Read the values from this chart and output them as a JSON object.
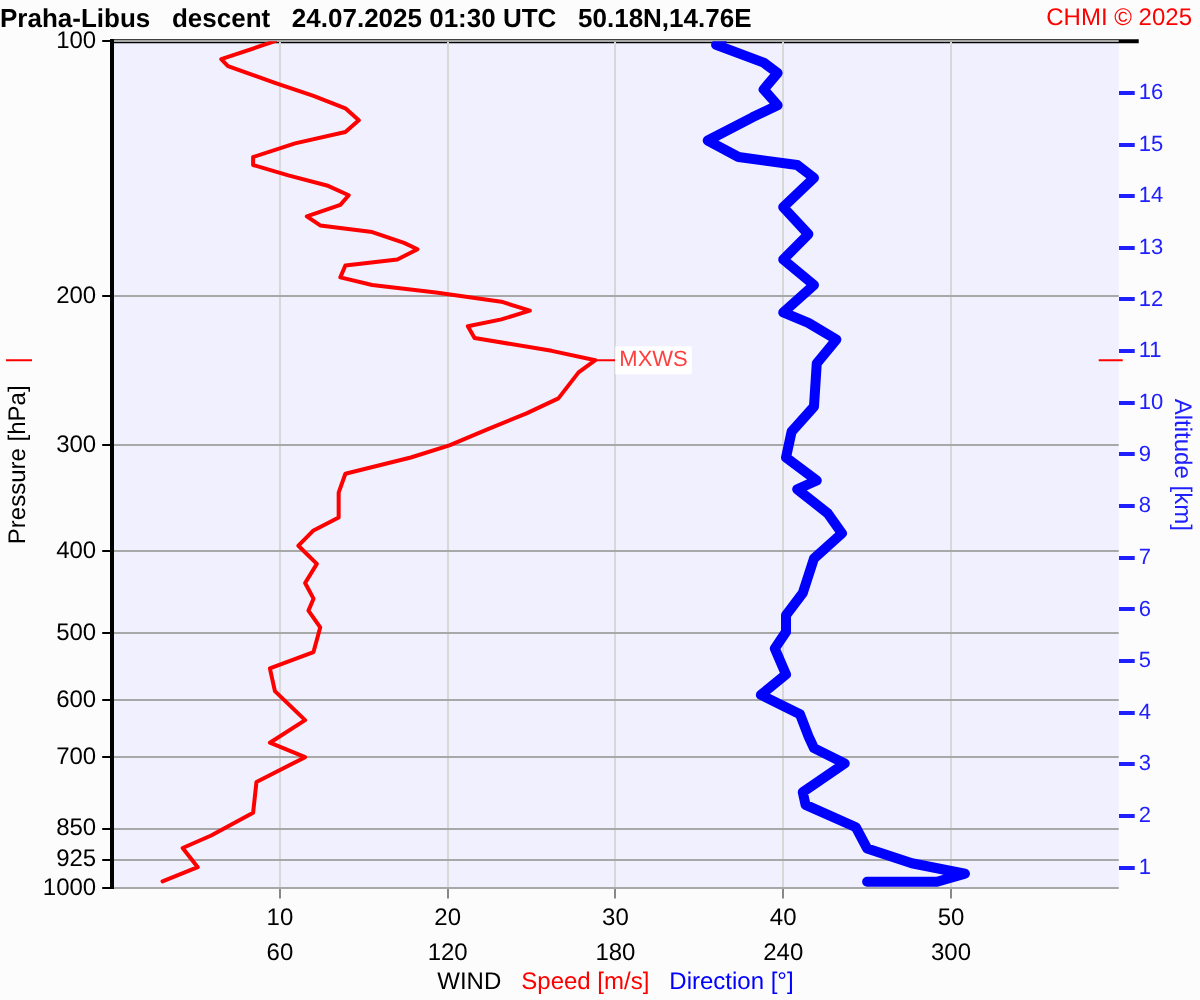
{
  "chart_data": {
    "type": "line",
    "title": "Praha-Libus   descent   24.07.2025 01:30 UTC   50.18N,14.76E",
    "xlabel": "WIND",
    "ylabel": "Pressure [hPa]",
    "y2label": "Altitude [km]",
    "legend": "bottom",
    "grid": true,
    "log": "y",
    "marker": "none",
    "line_style": "solid",
    "xlim": [
      0,
      60
    ],
    "xticks": [
      10,
      20,
      30,
      40,
      50
    ],
    "x2lim": [
      0,
      360
    ],
    "x2ticks": [
      60,
      120,
      180,
      240,
      300
    ],
    "ylim": [
      1000,
      100
    ],
    "yticks": [
      100,
      200,
      300,
      400,
      500,
      600,
      700,
      850,
      925,
      1000
    ],
    "series": [
      {
        "name": "Speed [m/s]",
        "color": "#ff0000",
        "x": [
          9.7,
          6.5,
          6.9,
          9.7,
          12.0,
          13.9,
          14.7,
          13.9,
          10.9,
          8.4,
          8.4,
          10.5,
          12.8,
          14.1,
          13.6,
          11.6,
          12.4,
          15.5,
          17.4,
          18.2,
          17.0,
          13.9,
          13.6,
          15.5,
          19.3,
          23.2,
          24.9,
          23.2,
          21.2,
          21.6,
          26.2,
          28.8,
          27.8,
          26.6,
          24.7,
          22.4,
          20.1,
          17.8,
          13.9,
          13.5,
          13.5,
          12.0,
          11.1,
          12.2,
          11.5,
          12.0,
          11.7,
          12.4,
          12.0,
          9.4,
          9.7,
          11.5,
          9.4,
          11.5,
          8.6,
          8.4,
          5.9,
          4.2,
          5.1,
          3.0
        ],
        "values": [
          100,
          105,
          107,
          112,
          116,
          120,
          124,
          128,
          132,
          137,
          140,
          144,
          148,
          152,
          156,
          161,
          165,
          168,
          173,
          176,
          181,
          184,
          190,
          194,
          198,
          203,
          208,
          213,
          217,
          224,
          232,
          238,
          246,
          264,
          275,
          287,
          300,
          310,
          324,
          341,
          365,
          378,
          394,
          414,
          436,
          455,
          470,
          492,
          526,
          550,
          585,
          633,
          673,
          700,
          749,
          814,
          866,
          896,
          944,
          981
        ]
      },
      {
        "name": "Direction [°]",
        "color": "#0000ff",
        "axis": "x2",
        "x": [
          218,
          216,
          233,
          238,
          233,
          238,
          229,
          213,
          224,
          245,
          251,
          240,
          249,
          240,
          251,
          240,
          249,
          259,
          252,
          251,
          243,
          241,
          252,
          245,
          256,
          261,
          251,
          247,
          241,
          241,
          237,
          241,
          232,
          246,
          249,
          251,
          262,
          247,
          248,
          266,
          270,
          286,
          305,
          295,
          270
        ],
        "values": [
          100,
          101,
          106,
          109,
          114,
          119,
          123,
          131,
          137,
          140,
          145,
          157,
          169,
          181,
          194,
          209,
          215,
          225,
          240,
          270,
          289,
          310,
          330,
          338,
          361,
          381,
          408,
          448,
          476,
          498,
          521,
          559,
          591,
          623,
          661,
          683,
          712,
          770,
          797,
          847,
          897,
          934,
          961,
          982,
          982
        ]
      }
    ],
    "y2lim": [
      0.6,
      17.0
    ],
    "y2ticks": [
      1,
      2,
      3,
      4,
      5,
      6,
      7,
      8,
      9,
      10,
      11,
      12,
      13,
      14,
      15,
      16
    ],
    "annotations": [
      "CHMI © 2025",
      {
        "text": "MXWS",
        "x": 28.8,
        "y": 238
      }
    ]
  }
}
